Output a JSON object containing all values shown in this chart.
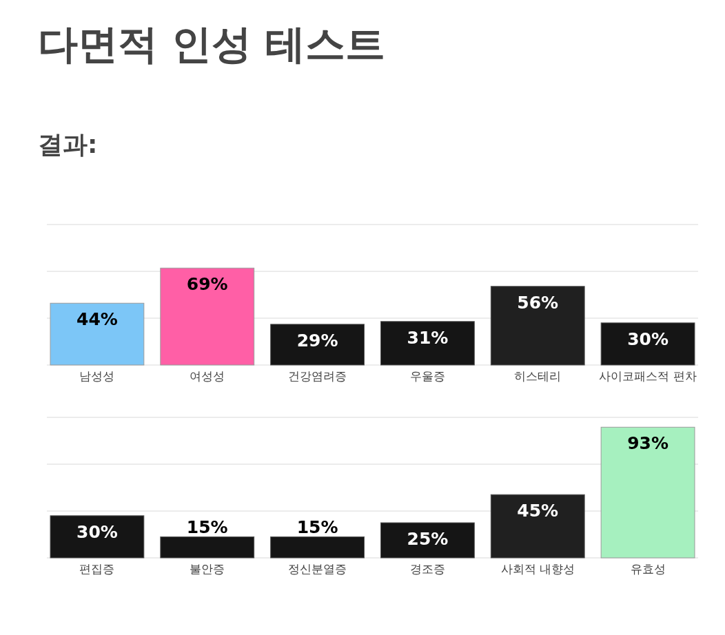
{
  "chart_data": [
    {
      "type": "bar",
      "title": "다면적 인성 테스트",
      "subtitle": "결과:",
      "categories": [
        "남성성",
        "여성성",
        "건강염려증",
        "우울증",
        "히스테리",
        "사이코패스적 편차"
      ],
      "values": [
        44,
        69,
        29,
        31,
        56,
        30
      ],
      "value_labels": [
        "44%",
        "69%",
        "29%",
        "31%",
        "56%",
        "30%"
      ],
      "colors": [
        "#7cc6f7",
        "#ff5fa6",
        "#151515",
        "#151515",
        "#202020",
        "#151515"
      ],
      "tick_labels": "x",
      "ref_lines": [
        {
          "axis": "y",
          "value": 33.3,
          "color": "#e6e6e6"
        },
        {
          "axis": "y",
          "value": 66.7,
          "color": "#e6e6e6"
        },
        {
          "axis": "y",
          "value": 100,
          "color": "#e6e6e6"
        }
      ]
    },
    {
      "type": "bar",
      "categories": [
        "편집증",
        "불안증",
        "정신분열증",
        "경조증",
        "사회적 내향성",
        "유효성"
      ],
      "values": [
        30,
        15,
        15,
        25,
        45,
        93
      ],
      "value_labels": [
        "30%",
        "15%",
        "15%",
        "25%",
        "45%",
        "93%"
      ],
      "colors": [
        "#151515",
        "#151515",
        "#151515",
        "#151515",
        "#202020",
        "#a6f0bf"
      ],
      "tick_labels": "x",
      "ref_lines": [
        {
          "axis": "y",
          "value": 33.3,
          "color": "#e6e6e6"
        },
        {
          "axis": "y",
          "value": 66.7,
          "color": "#e6e6e6"
        },
        {
          "axis": "y",
          "value": 100,
          "color": "#e6e6e6"
        }
      ]
    }
  ]
}
